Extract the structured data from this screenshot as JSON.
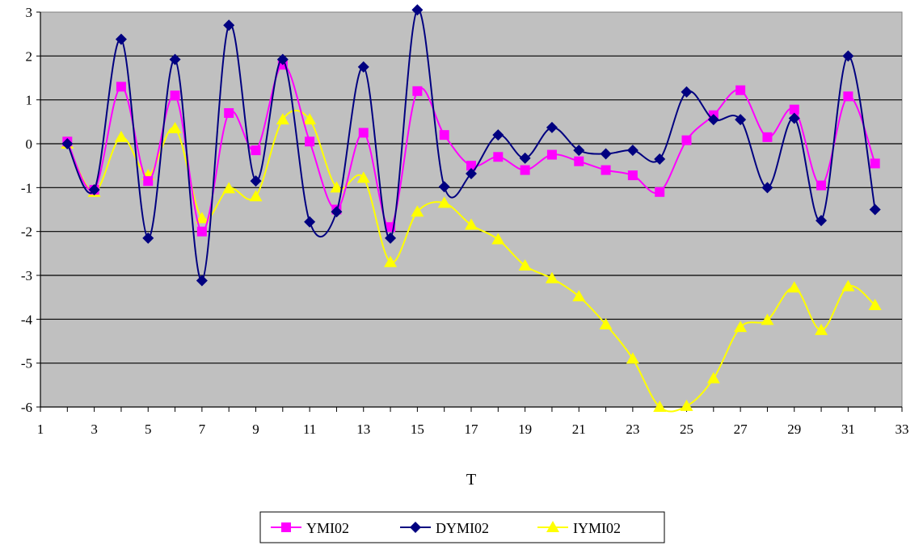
{
  "chart_data": {
    "type": "line",
    "title": "",
    "xlabel": "T",
    "ylabel": "",
    "xlim": [
      1,
      33
    ],
    "ylim": [
      -6,
      3
    ],
    "x_ticks": [
      1,
      3,
      5,
      7,
      9,
      11,
      13,
      15,
      17,
      19,
      21,
      23,
      25,
      27,
      29,
      31,
      33
    ],
    "y_ticks": [
      -6,
      -5,
      -4,
      -3,
      -2,
      -1,
      0,
      1,
      2,
      3
    ],
    "grid": "horizontal",
    "plot_background": "#c0c0c0",
    "legend_position": "bottom",
    "x": [
      2,
      3,
      4,
      5,
      6,
      7,
      8,
      9,
      10,
      11,
      12,
      13,
      14,
      15,
      16,
      17,
      18,
      19,
      20,
      21,
      22,
      23,
      24,
      25,
      26,
      27,
      28,
      29,
      30,
      31,
      32
    ],
    "series": [
      {
        "name": "YMI02",
        "color": "#ff00ff",
        "marker": "square",
        "values": [
          0.05,
          -1.05,
          1.3,
          -0.85,
          1.1,
          -2.0,
          0.7,
          -0.15,
          1.8,
          0.05,
          -1.5,
          0.25,
          -1.9,
          1.2,
          0.2,
          -0.5,
          -0.3,
          -0.6,
          -0.25,
          -0.4,
          -0.6,
          -0.72,
          -1.1,
          0.08,
          0.65,
          1.22,
          0.15,
          0.78,
          -0.95,
          1.08,
          -0.45
        ]
      },
      {
        "name": "DYMI02",
        "color": "#000080",
        "marker": "diamond",
        "values": [
          0.0,
          -1.05,
          2.38,
          -2.15,
          1.92,
          -3.12,
          2.7,
          -0.85,
          1.92,
          -1.78,
          -1.55,
          1.75,
          -2.15,
          3.05,
          -0.98,
          -0.68,
          0.2,
          -0.33,
          0.37,
          -0.15,
          -0.23,
          -0.15,
          -0.35,
          1.18,
          0.55,
          0.55,
          -1.0,
          0.58,
          -1.75,
          2.0,
          -1.5
        ]
      },
      {
        "name": "IYMI02",
        "color": "#ffff00",
        "marker": "triangle",
        "values": [
          0.0,
          -1.1,
          0.15,
          -0.72,
          0.35,
          -1.7,
          -1.02,
          -1.2,
          0.55,
          0.55,
          -1.0,
          -0.78,
          -2.7,
          -1.55,
          -1.35,
          -1.85,
          -2.18,
          -2.78,
          -3.07,
          -3.48,
          -4.12,
          -4.9,
          -6.0,
          -5.98,
          -5.35,
          -4.18,
          -4.02,
          -3.28,
          -4.25,
          -3.25,
          -3.68
        ]
      }
    ]
  }
}
